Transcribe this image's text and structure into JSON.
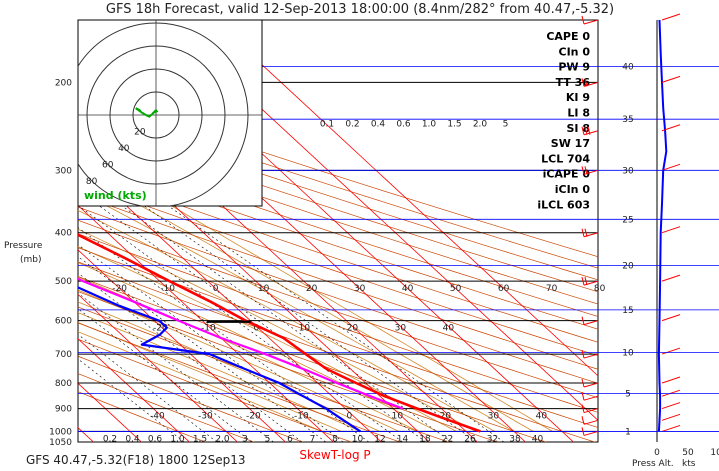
{
  "title": "GFS 18h Forecast, valid 12-Sep-2013 18:00:00 (8.4nm/282° from 40.47,-5.32)",
  "footer": "GFS 40.47,-5.32(F18) 1800 12Sep13",
  "xlabel": "SkewT-log P",
  "ylabel_line1": "Pressure",
  "ylabel_line2": "(mb)",
  "hodograph_label": "wind (kts)",
  "alt_axis_label": "kts",
  "alt_axis_sub": "Press Alt.",
  "colors": {
    "temperature": "#ff0000",
    "dewpoint": "#0000ff",
    "parcel": "#ff00ff",
    "isotherm": "#ff0000",
    "dry_adiabat": "#cc4400",
    "mixing_ratio": "#000000",
    "moist_adiabat": "#d28a2a",
    "hodograph": "#00aa00"
  },
  "indices": [
    {
      "label": "CAPE 0"
    },
    {
      "label": "CIn 0"
    },
    {
      "label": "PW 9"
    },
    {
      "label": "TT 36"
    },
    {
      "label": "KI 9"
    },
    {
      "label": "LI 8"
    },
    {
      "label": "SI 8"
    },
    {
      "label": "SW 17"
    },
    {
      "label": "LCL 704"
    },
    {
      "label": "iCAPE 0"
    },
    {
      "label": "iCIn 0"
    },
    {
      "label": "iLCL 603"
    }
  ],
  "chart_data": {
    "type": "line",
    "title": "GFS 18h Forecast, valid 12-Sep-2013 18:00:00 (8.4nm/282° from 40.47,-5.32)",
    "xlabel": "SkewT-log P",
    "ylabel": "Pressure (mb)",
    "pressure_ticks": [
      200,
      300,
      400,
      500,
      600,
      700,
      800,
      900,
      1000,
      1050
    ],
    "isotherm_labels_top": [
      -20,
      -10,
      0,
      10,
      20,
      30,
      40,
      50,
      60,
      70,
      80
    ],
    "isotherm_labels_mid": [
      -20,
      -10,
      0,
      10,
      20,
      30,
      40
    ],
    "isotherm_labels_bottom": [
      -40,
      -30,
      -20,
      -10,
      0,
      10,
      20,
      30,
      40
    ],
    "mixing_ratio_labels_top": [
      "0.1",
      "0.2",
      "0.4",
      "0.6",
      "1.0",
      "1.5",
      "2.0",
      "5"
    ],
    "mixing_ratio_labels_bottom": [
      "0.2",
      "0.4",
      "0.6",
      "1.0",
      "1.5",
      "2.0",
      "3",
      "5",
      "6",
      "7",
      "8",
      "10",
      "12",
      "14",
      "18",
      "22",
      "26",
      "32",
      "38",
      "40"
    ],
    "height_ticks_kft": [
      1,
      5,
      10,
      15,
      20,
      25,
      30,
      35,
      40
    ],
    "wind_axis_ticks": [
      0,
      50,
      100
    ],
    "hodograph_rings": [
      20,
      40,
      60,
      80
    ],
    "series": [
      {
        "name": "temperature",
        "points": [
          [
            1000,
            23
          ],
          [
            950,
            19
          ],
          [
            900,
            15
          ],
          [
            850,
            11
          ],
          [
            800,
            8
          ],
          [
            750,
            5
          ],
          [
            700,
            4
          ],
          [
            650,
            3
          ],
          [
            600,
            -1
          ],
          [
            550,
            -4
          ],
          [
            500,
            -8
          ],
          [
            450,
            -12
          ],
          [
            400,
            -17
          ],
          [
            350,
            -23
          ],
          [
            300,
            -29
          ],
          [
            275,
            -33
          ],
          [
            250,
            -38
          ],
          [
            225,
            -43
          ],
          [
            200,
            -51
          ],
          [
            190,
            -53
          ],
          [
            170,
            -54
          ],
          [
            150,
            -54
          ]
        ]
      },
      {
        "name": "dewpoint",
        "points": [
          [
            1000,
            -2
          ],
          [
            950,
            -3
          ],
          [
            900,
            -4
          ],
          [
            850,
            -6
          ],
          [
            800,
            -8
          ],
          [
            750,
            -12
          ],
          [
            700,
            -16
          ],
          [
            670,
            -28
          ],
          [
            640,
            -22
          ],
          [
            620,
            -19
          ],
          [
            600,
            -19
          ],
          [
            560,
            -24
          ],
          [
            500,
            -30
          ],
          [
            460,
            -30
          ],
          [
            430,
            -27
          ],
          [
            400,
            -27
          ],
          [
            350,
            -33
          ],
          [
            300,
            -40
          ],
          [
            275,
            -43
          ],
          [
            250,
            -46
          ],
          [
            225,
            -49
          ],
          [
            200,
            -53
          ],
          [
            150,
            -60
          ]
        ]
      },
      {
        "name": "parcel",
        "points": [
          [
            900,
            12
          ],
          [
            850,
            8
          ],
          [
            800,
            4
          ],
          [
            760,
            1
          ],
          [
            704,
            -4
          ],
          [
            650,
            -10
          ],
          [
            600,
            -15
          ],
          [
            550,
            -20
          ],
          [
            500,
            -26
          ],
          [
            450,
            -31
          ],
          [
            400,
            -38
          ],
          [
            350,
            -45
          ],
          [
            300,
            -53
          ],
          [
            250,
            -62
          ],
          [
            200,
            -72
          ],
          [
            150,
            -85
          ]
        ]
      }
    ],
    "wind_barbs_kts": [
      {
        "p": 1000,
        "spd": 5
      },
      {
        "p": 950,
        "spd": 10
      },
      {
        "p": 900,
        "spd": 10
      },
      {
        "p": 850,
        "spd": 10
      },
      {
        "p": 800,
        "spd": 10
      },
      {
        "p": 700,
        "spd": 10
      },
      {
        "p": 600,
        "spd": 10
      },
      {
        "p": 500,
        "spd": 15
      },
      {
        "p": 400,
        "spd": 15
      },
      {
        "p": 300,
        "spd": 20
      },
      {
        "p": 250,
        "spd": 25
      },
      {
        "p": 200,
        "spd": 20
      },
      {
        "p": 150,
        "spd": 10
      }
    ],
    "wind_speed_profile_kts": [
      [
        1000,
        3
      ],
      [
        950,
        4
      ],
      [
        900,
        5
      ],
      [
        850,
        5
      ],
      [
        800,
        4
      ],
      [
        700,
        3
      ],
      [
        600,
        4
      ],
      [
        500,
        5
      ],
      [
        400,
        6
      ],
      [
        350,
        8
      ],
      [
        300,
        10
      ],
      [
        275,
        15
      ],
      [
        250,
        13
      ],
      [
        225,
        10
      ],
      [
        200,
        8
      ],
      [
        175,
        6
      ],
      [
        150,
        4
      ]
    ]
  }
}
